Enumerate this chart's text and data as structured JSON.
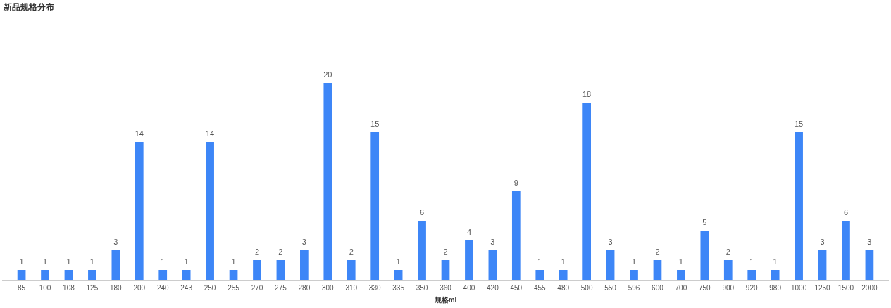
{
  "chart_data": {
    "type": "bar",
    "title": "新品规格分布",
    "xlabel": "规格ml",
    "categories": [
      "85",
      "100",
      "108",
      "125",
      "180",
      "200",
      "240",
      "243",
      "250",
      "255",
      "270",
      "275",
      "280",
      "300",
      "310",
      "330",
      "335",
      "350",
      "360",
      "400",
      "420",
      "450",
      "455",
      "480",
      "500",
      "550",
      "596",
      "600",
      "700",
      "750",
      "900",
      "920",
      "980",
      "1000",
      "1250",
      "1500",
      "2000"
    ],
    "values": [
      1,
      1,
      1,
      1,
      3,
      14,
      1,
      1,
      14,
      1,
      2,
      2,
      3,
      20,
      2,
      15,
      1,
      6,
      2,
      4,
      3,
      9,
      1,
      1,
      18,
      3,
      1,
      2,
      1,
      5,
      2,
      1,
      1,
      15,
      3,
      6,
      3
    ],
    "color": "#3d86f7",
    "data_labels": true
  }
}
